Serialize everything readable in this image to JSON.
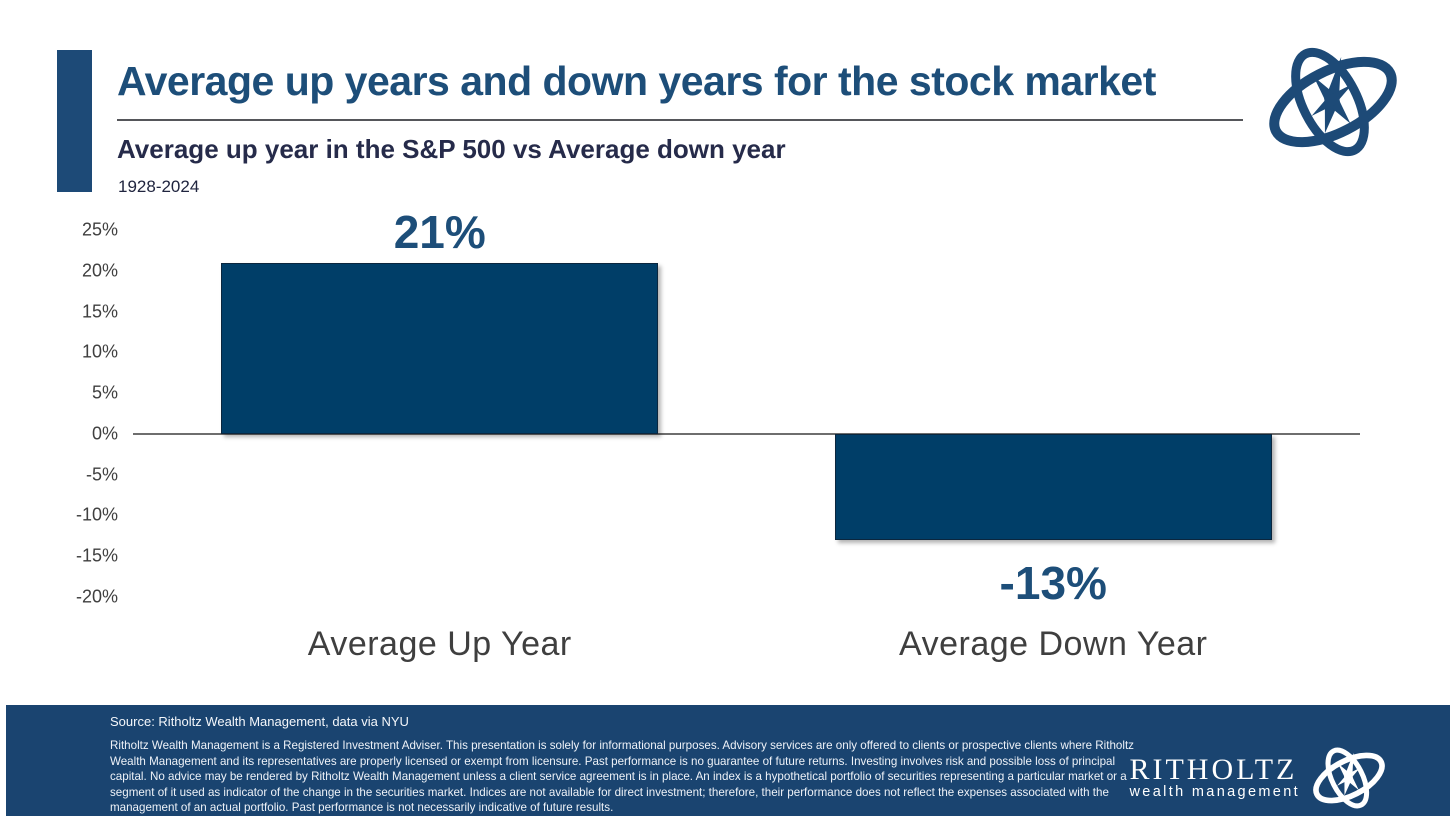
{
  "header": {
    "title": "Average up years and down years for the stock market",
    "subtitle": "Average up year in the S&P 500 vs Average down year",
    "period": "1928-2024"
  },
  "chart_data": {
    "type": "bar",
    "title": "Average up year in the S&P 500 vs Average down year",
    "subtitle_period": "1928-2024",
    "categories": [
      "Average Up Year",
      "Average Down Year"
    ],
    "values": [
      21,
      -13
    ],
    "data_labels": [
      "21%",
      "-13%"
    ],
    "xlabel": "",
    "ylabel": "",
    "ylim": [
      -20,
      25
    ],
    "ytick_step": 5,
    "yticks": [
      "25%",
      "20%",
      "15%",
      "10%",
      "5%",
      "0%",
      "-5%",
      "-10%",
      "-15%",
      "-20%"
    ],
    "grid": false,
    "legend": "none",
    "bar_color": "#003e68",
    "bar_width_ratio": 0.7125
  },
  "footer": {
    "source": "Source: Ritholtz Wealth Management, data via NYU",
    "disclaimer": "Ritholtz Wealth Management is a Registered Investment Adviser. This presentation is solely for informational purposes. Advisory services are only offered to clients or prospective clients where Ritholtz Wealth Management and its representatives are properly licensed or exempt from licensure. Past performance is no guarantee of future returns. Investing involves risk and possible loss of principal capital. No advice may be rendered by Ritholtz Wealth Management unless a client service agreement is in place. An index is a hypothetical portfolio of securities representing a particular market or a segment of it used as indicator of the change in the securities market. Indices are not available for direct investment; therefore, their performance does not reflect the expenses associated with the management of an actual portfolio. Past performance is not necessarily indicative of future results.",
    "brand_name": "RITHOLTZ",
    "brand_subtitle": "wealth management"
  },
  "colors": {
    "accent_bar": "#1d4a77",
    "title_text": "#1d4e79",
    "subtitle_text": "#262b4a",
    "bar_fill": "#003e68",
    "axis_line": "#6e6e6e",
    "footer_background": "#1a4470"
  },
  "icons": {
    "header_logo": "ritholtz-compass-globe",
    "footer_logo": "ritholtz-compass-globe"
  }
}
